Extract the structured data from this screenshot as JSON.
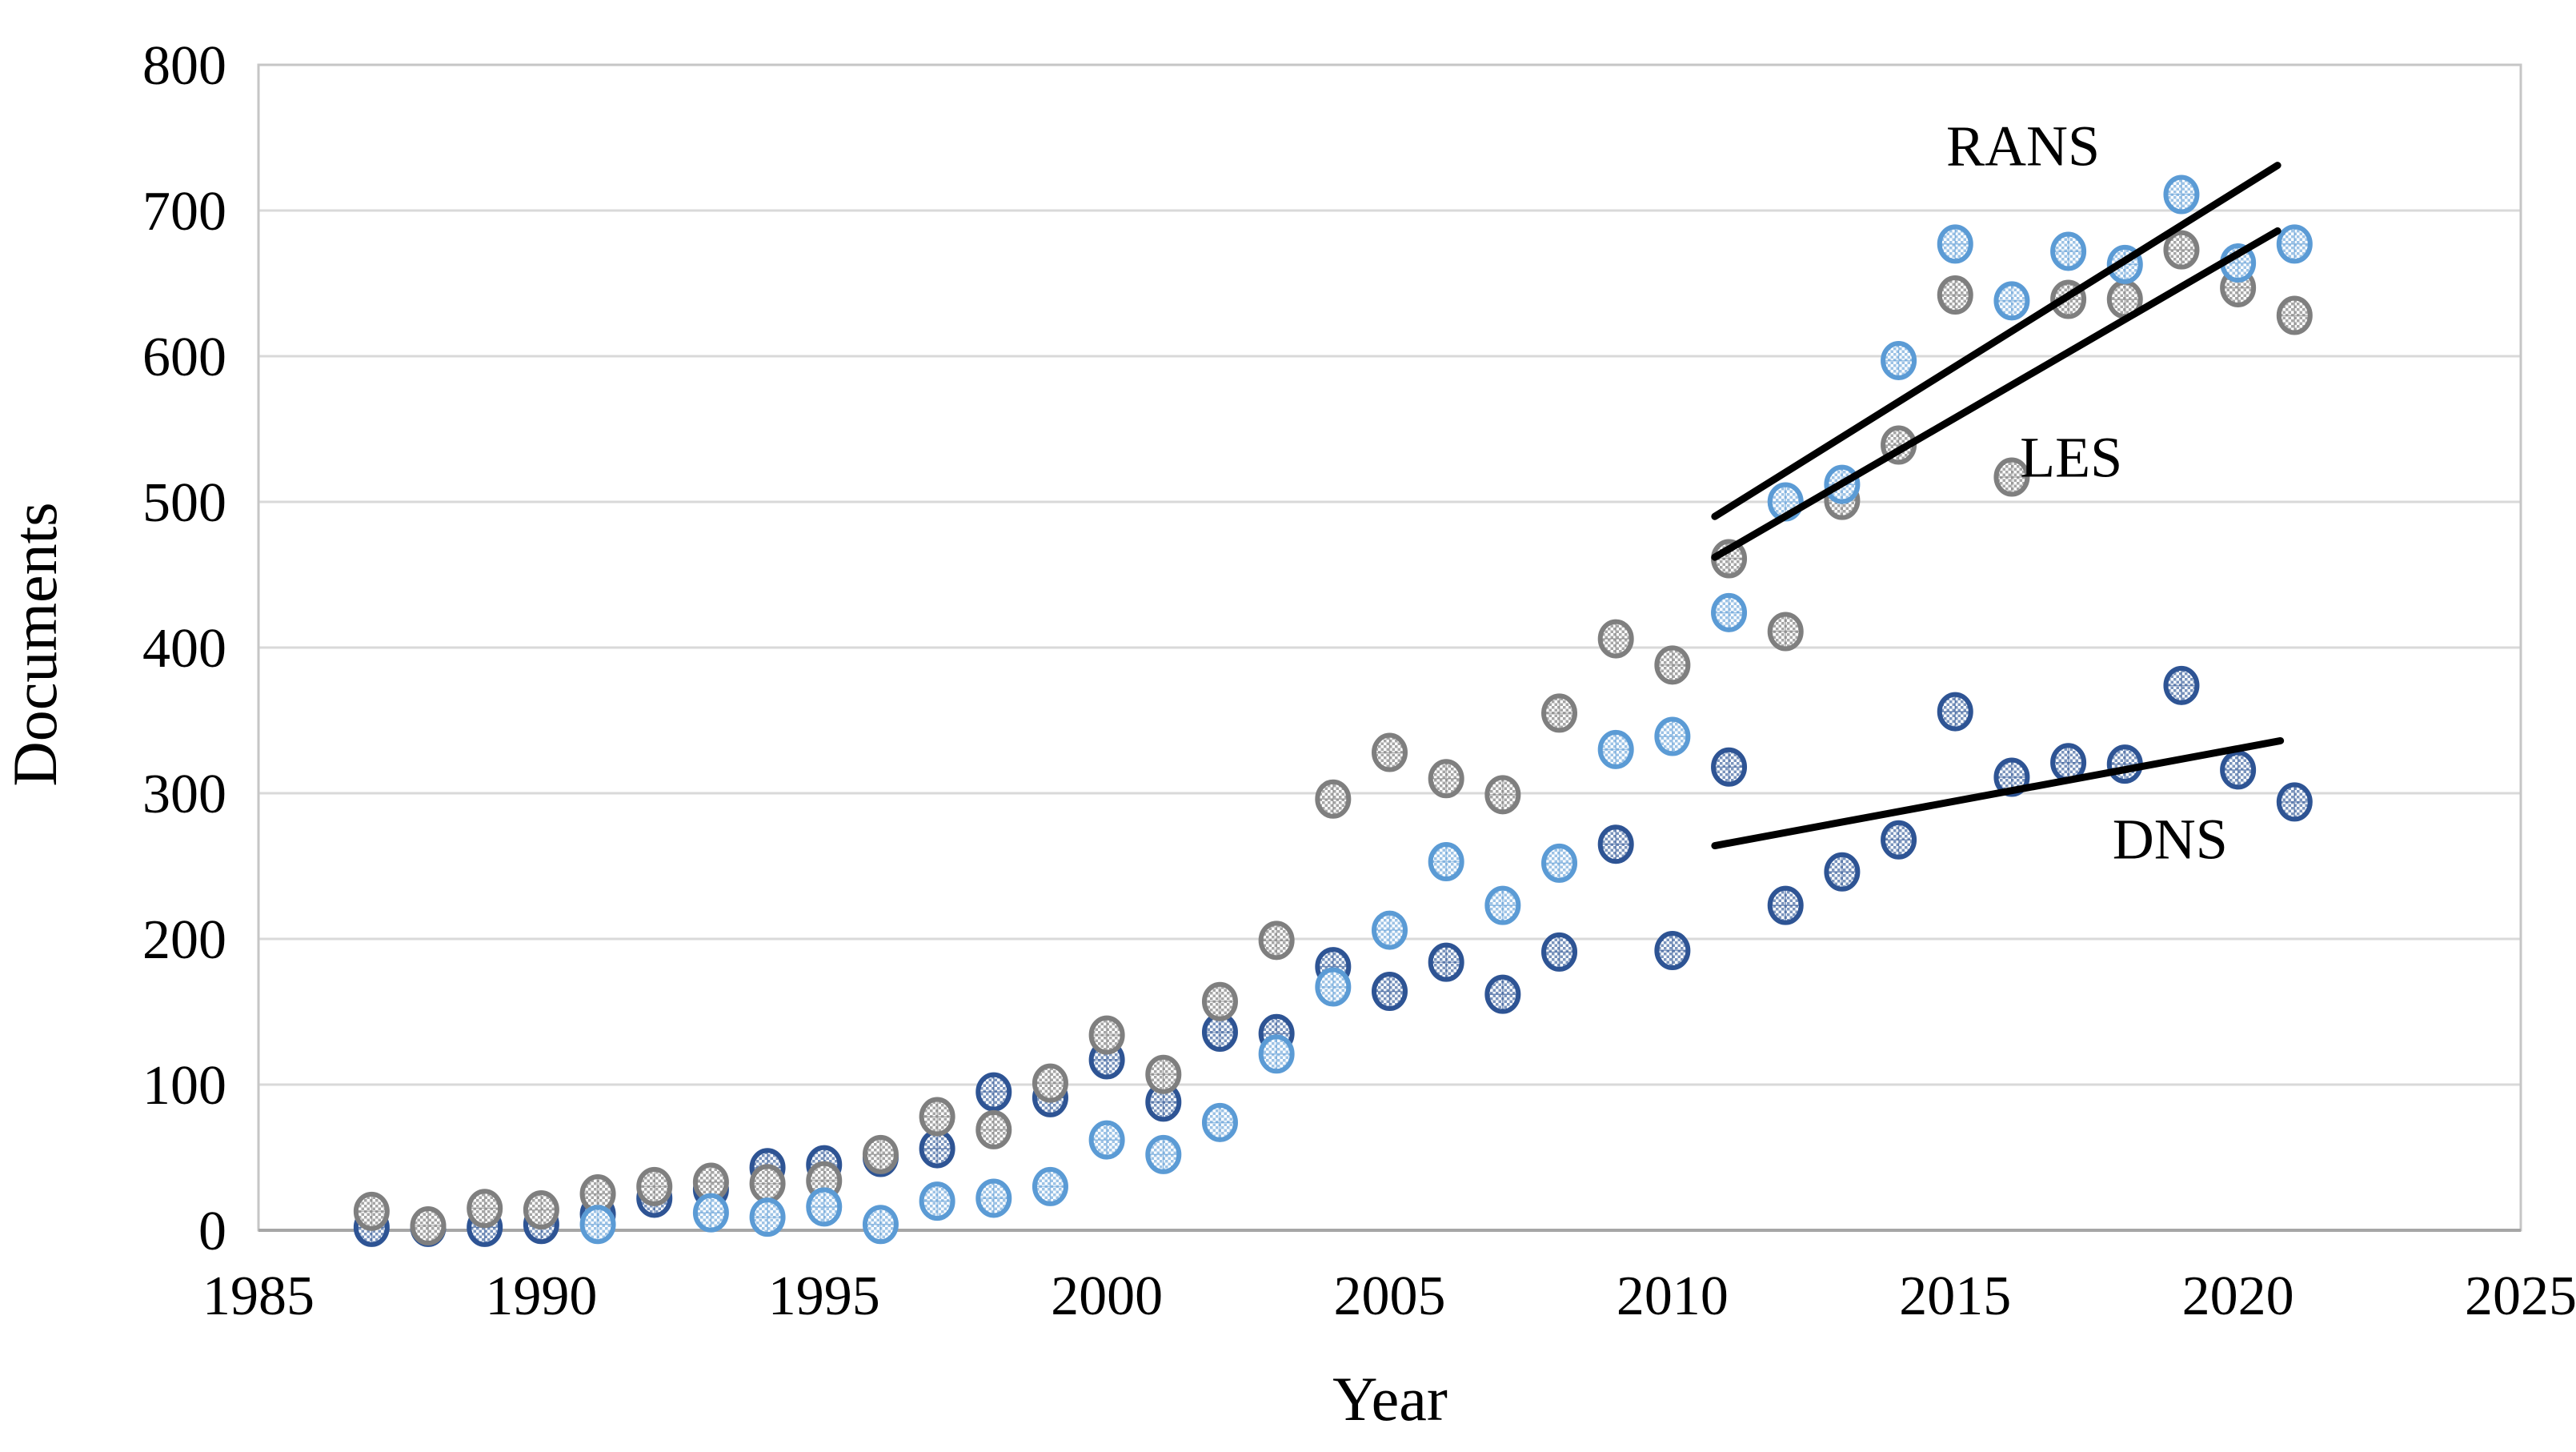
{
  "chart_data": {
    "type": "scatter",
    "title": "",
    "xlabel": "Year",
    "ylabel": "Documents",
    "xlim": [
      1985,
      2025
    ],
    "ylim": [
      0,
      800
    ],
    "x_ticks": [
      1985,
      1990,
      1995,
      2000,
      2005,
      2010,
      2015,
      2020,
      2025
    ],
    "y_ticks": [
      0,
      100,
      200,
      300,
      400,
      500,
      600,
      700,
      800
    ],
    "grid": "horizontal-only",
    "legend_position": "inline-annotations",
    "years": [
      1987,
      1988,
      1989,
      1990,
      1991,
      1992,
      1993,
      1994,
      1995,
      1996,
      1997,
      1998,
      1999,
      2000,
      2001,
      2002,
      2003,
      2004,
      2005,
      2006,
      2007,
      2008,
      2009,
      2010,
      2011,
      2012,
      2013,
      2014,
      2015,
      2016,
      2017,
      2018,
      2019,
      2020,
      2021
    ],
    "series": [
      {
        "name": "RANS",
        "stroke": "#5B9BD5",
        "fill": "#9DC3E6",
        "values": [
          null,
          null,
          null,
          null,
          4,
          null,
          12,
          9,
          16,
          4,
          20,
          22,
          30,
          62,
          52,
          74,
          121,
          167,
          206,
          253,
          223,
          252,
          330,
          339,
          424,
          500,
          512,
          597,
          677,
          638,
          672,
          663,
          711,
          664,
          677
        ]
      },
      {
        "name": "LES",
        "stroke": "#7F7F7F",
        "fill": "#A6A6A6",
        "values": [
          13,
          3,
          15,
          14,
          25,
          30,
          33,
          32,
          34,
          52,
          78,
          69,
          101,
          134,
          107,
          157,
          199,
          296,
          328,
          310,
          299,
          355,
          406,
          388,
          461,
          411,
          501,
          539,
          642,
          517,
          639,
          639,
          673,
          647,
          628
        ]
      },
      {
        "name": "DNS",
        "stroke": "#2E5494",
        "fill": "#7A94BD",
        "values": [
          2,
          2,
          2,
          4,
          11,
          22,
          28,
          43,
          45,
          50,
          56,
          95,
          91,
          117,
          88,
          136,
          135,
          181,
          164,
          184,
          162,
          191,
          265,
          192,
          318,
          223,
          246,
          268,
          356,
          311,
          321,
          320,
          374,
          316,
          294
        ]
      }
    ],
    "annotations": [
      {
        "id": "rans",
        "text": "RANS",
        "year": 2016.2,
        "doc": 744
      },
      {
        "id": "les",
        "text": "LES",
        "year": 2017.05,
        "doc": 530
      },
      {
        "id": "dns",
        "text": "DNS",
        "year": 2018.8,
        "doc": 268
      }
    ],
    "trendlines": [
      {
        "series": "RANS",
        "x1": 2010.75,
        "y1": 490,
        "x2": 2020.7,
        "y2": 731
      },
      {
        "series": "LES",
        "x1": 2010.75,
        "y1": 462,
        "x2": 2020.7,
        "y2": 686
      },
      {
        "series": "DNS",
        "x1": 2010.75,
        "y1": 264,
        "x2": 2020.75,
        "y2": 336
      }
    ],
    "colors": {
      "gridline": "#D9D9D9",
      "plot_border": "#C6C6C6",
      "axis_line": "#A6A6A6",
      "trendline": "#000000"
    }
  }
}
